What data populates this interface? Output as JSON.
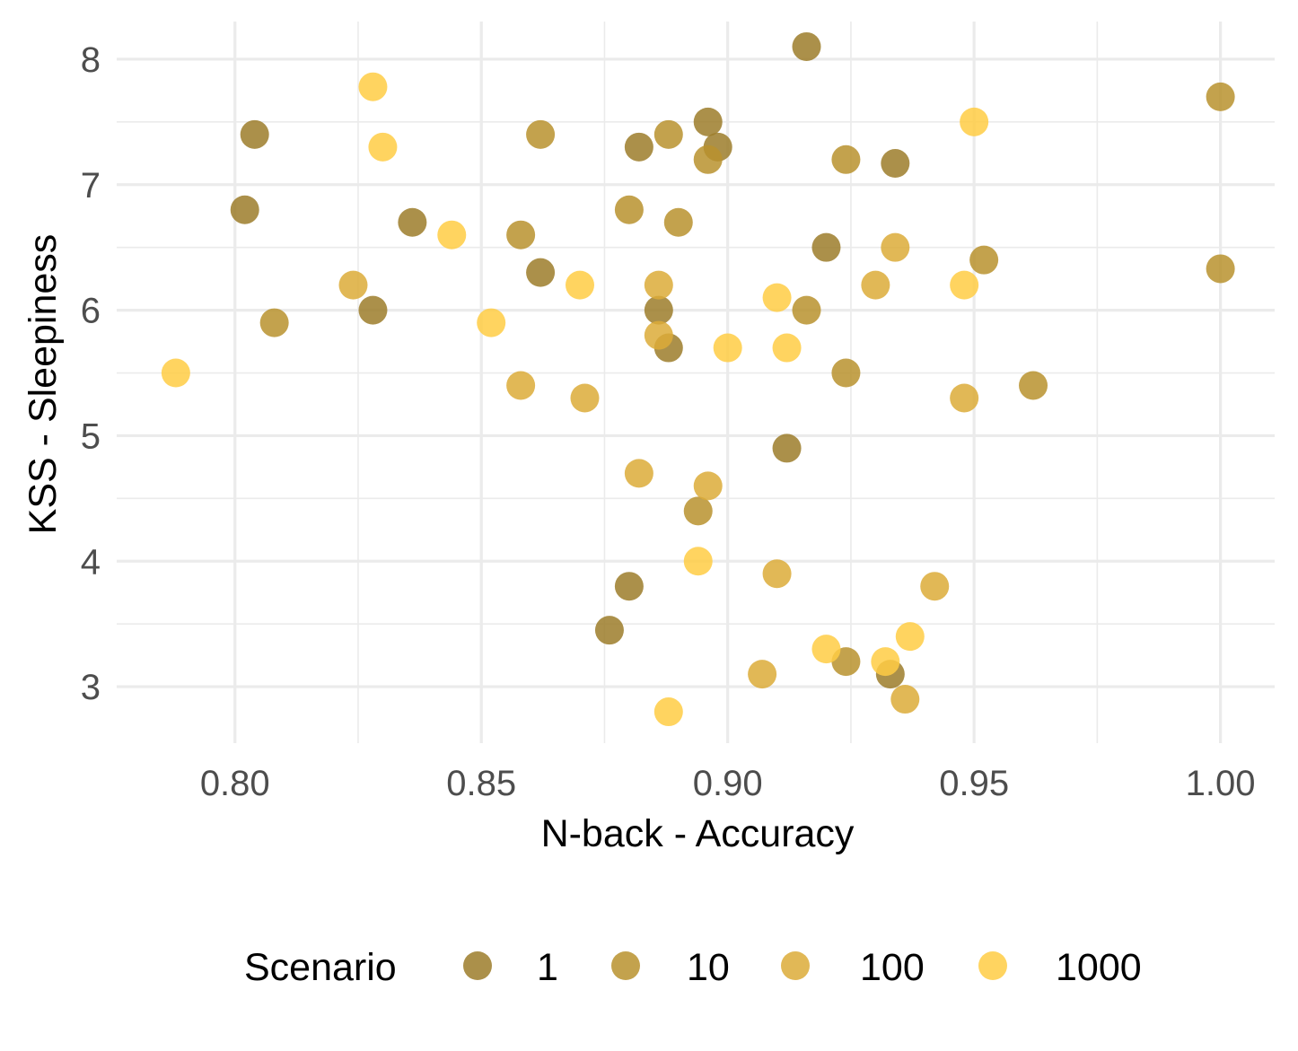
{
  "chart_data": {
    "type": "scatter",
    "title": "",
    "xlabel": "N-back - Accuracy",
    "ylabel": "KSS - Sleepiness",
    "xlim": [
      0.776,
      1.011
    ],
    "ylim": [
      2.55,
      8.3
    ],
    "x_ticks": [
      "0.80",
      "0.85",
      "0.90",
      "0.95",
      "1.00"
    ],
    "y_ticks": [
      "3",
      "4",
      "5",
      "6",
      "7",
      "8"
    ],
    "grid": true,
    "legend": {
      "position": "bottom",
      "title": "Scenario",
      "entries": [
        "1",
        "10",
        "100",
        "1000"
      ]
    },
    "series": [
      {
        "name": "1",
        "color": "#9c7c2a",
        "points": [
          [
            0.804,
            7.4
          ],
          [
            0.802,
            6.8
          ],
          [
            0.828,
            6.0
          ],
          [
            0.836,
            6.7
          ],
          [
            0.862,
            6.3
          ],
          [
            0.882,
            7.3
          ],
          [
            0.896,
            7.5
          ],
          [
            0.898,
            7.3
          ],
          [
            0.886,
            6.0
          ],
          [
            0.888,
            5.7
          ],
          [
            0.88,
            3.8
          ],
          [
            0.876,
            3.45
          ],
          [
            0.912,
            4.9
          ],
          [
            0.916,
            8.1
          ],
          [
            0.92,
            6.5
          ],
          [
            0.934,
            7.17
          ],
          [
            0.933,
            3.1
          ]
        ]
      },
      {
        "name": "10",
        "color": "#b9922e",
        "points": [
          [
            0.808,
            5.9
          ],
          [
            0.858,
            6.6
          ],
          [
            0.862,
            7.4
          ],
          [
            0.88,
            6.8
          ],
          [
            0.888,
            7.4
          ],
          [
            0.89,
            6.7
          ],
          [
            0.896,
            7.2
          ],
          [
            0.894,
            4.4
          ],
          [
            0.916,
            6.0
          ],
          [
            0.924,
            7.2
          ],
          [
            0.924,
            5.5
          ],
          [
            0.924,
            3.2
          ],
          [
            0.952,
            6.4
          ],
          [
            0.962,
            5.4
          ],
          [
            1.0,
            7.7
          ],
          [
            1.0,
            6.33
          ]
        ]
      },
      {
        "name": "100",
        "color": "#dcab38",
        "points": [
          [
            0.824,
            6.2
          ],
          [
            0.858,
            5.4
          ],
          [
            0.871,
            5.3
          ],
          [
            0.882,
            4.7
          ],
          [
            0.886,
            6.2
          ],
          [
            0.886,
            5.8
          ],
          [
            0.896,
            4.6
          ],
          [
            0.91,
            3.9
          ],
          [
            0.907,
            3.1
          ],
          [
            0.93,
            6.2
          ],
          [
            0.934,
            6.5
          ],
          [
            0.936,
            2.9
          ],
          [
            0.942,
            3.8
          ],
          [
            0.948,
            5.3
          ]
        ]
      },
      {
        "name": "1000",
        "color": "#ffcc44",
        "points": [
          [
            0.788,
            5.5
          ],
          [
            0.828,
            7.78
          ],
          [
            0.83,
            7.3
          ],
          [
            0.844,
            6.6
          ],
          [
            0.852,
            5.9
          ],
          [
            0.87,
            6.2
          ],
          [
            0.888,
            2.8
          ],
          [
            0.894,
            4.0
          ],
          [
            0.9,
            5.7
          ],
          [
            0.91,
            6.1
          ],
          [
            0.912,
            5.7
          ],
          [
            0.92,
            3.3
          ],
          [
            0.932,
            3.2
          ],
          [
            0.937,
            3.4
          ],
          [
            0.948,
            6.2
          ],
          [
            0.95,
            7.5
          ]
        ]
      }
    ]
  }
}
